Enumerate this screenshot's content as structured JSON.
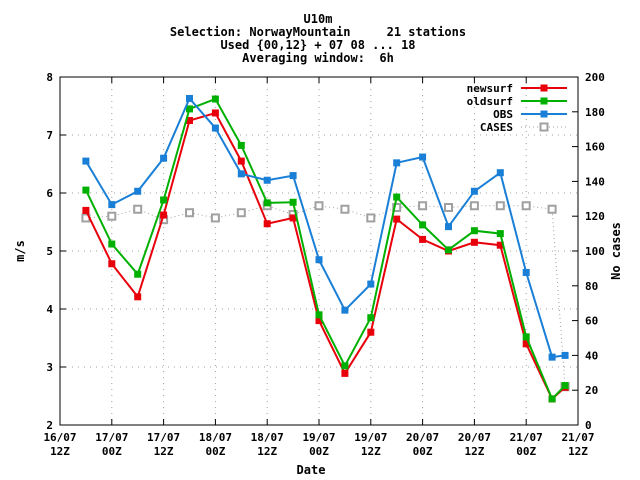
{
  "chart_data": {
    "type": "line",
    "title_lines": [
      "U10m",
      "Selection: NorwayMountain     21 stations",
      "Used {00,12} + 07 08 ... 18",
      "Averaging window:  6h"
    ],
    "xlabel": "Date",
    "ylabel": "m/s",
    "y2label": "No cases",
    "ylim": [
      2,
      8
    ],
    "y2lim": [
      0,
      200
    ],
    "yticks": [
      "2",
      "3",
      "4",
      "5",
      "6",
      "7",
      "8"
    ],
    "y2ticks": [
      "0",
      "20",
      "40",
      "60",
      "80",
      "100",
      "120",
      "140",
      "160",
      "180",
      "200"
    ],
    "xlim": [
      0,
      240
    ],
    "xticks": [
      {
        "h": 0,
        "line1": "16/07",
        "line2": "12Z"
      },
      {
        "h": 24,
        "line1": "17/07",
        "line2": "00Z"
      },
      {
        "h": 48,
        "line1": "17/07",
        "line2": "12Z"
      },
      {
        "h": 72,
        "line1": "18/07",
        "line2": "00Z"
      },
      {
        "h": 96,
        "line1": "18/07",
        "line2": "12Z"
      },
      {
        "h": 120,
        "line1": "19/07",
        "line2": "00Z"
      },
      {
        "h": 144,
        "line1": "19/07",
        "line2": "12Z"
      },
      {
        "h": 168,
        "line1": "20/07",
        "line2": "00Z"
      },
      {
        "h": 192,
        "line1": "20/07",
        "line2": "12Z"
      },
      {
        "h": 216,
        "line1": "21/07",
        "line2": "00Z"
      },
      {
        "h": 240,
        "line1": "21/07",
        "line2": "12Z"
      }
    ],
    "x": [
      12,
      24,
      36,
      48,
      60,
      72,
      84,
      96,
      108,
      120,
      132,
      144,
      156,
      168,
      180,
      192,
      204,
      216,
      228,
      234
    ],
    "grid": true,
    "legend_position": "top-right",
    "series": [
      {
        "name": "newsurf",
        "axis": "left",
        "color": "#e8000b",
        "marker": "filled-square",
        "line": "solid",
        "values": [
          5.7,
          4.78,
          4.21,
          5.62,
          7.25,
          7.38,
          6.55,
          5.47,
          5.57,
          3.8,
          2.89,
          3.6,
          5.55,
          5.2,
          5.0,
          5.15,
          5.1,
          3.4,
          2.45,
          2.65
        ]
      },
      {
        "name": "oldsurf",
        "axis": "left",
        "color": "#00b000",
        "marker": "filled-square",
        "line": "solid",
        "values": [
          6.05,
          5.12,
          4.6,
          5.88,
          7.45,
          7.62,
          6.82,
          5.83,
          5.84,
          3.9,
          3.02,
          3.85,
          5.93,
          5.45,
          5.02,
          5.35,
          5.3,
          3.52,
          2.45,
          2.68
        ]
      },
      {
        "name": "OBS",
        "axis": "left",
        "color": "#1a7fd6",
        "marker": "filled-square",
        "line": "solid",
        "values": [
          6.55,
          5.8,
          6.03,
          6.6,
          7.63,
          7.12,
          6.33,
          6.22,
          6.3,
          4.85,
          3.98,
          4.43,
          6.52,
          6.62,
          5.42,
          6.03,
          6.35,
          4.63,
          3.17,
          3.2
        ]
      },
      {
        "name": "CASES",
        "axis": "right",
        "color": "#a0a0a0",
        "marker": "open-square",
        "line": "dotted",
        "values": [
          119,
          120,
          124,
          118,
          122,
          119,
          122,
          126,
          121,
          126,
          124,
          119,
          125,
          126,
          125,
          126,
          126,
          126,
          124,
          22
        ]
      }
    ]
  }
}
